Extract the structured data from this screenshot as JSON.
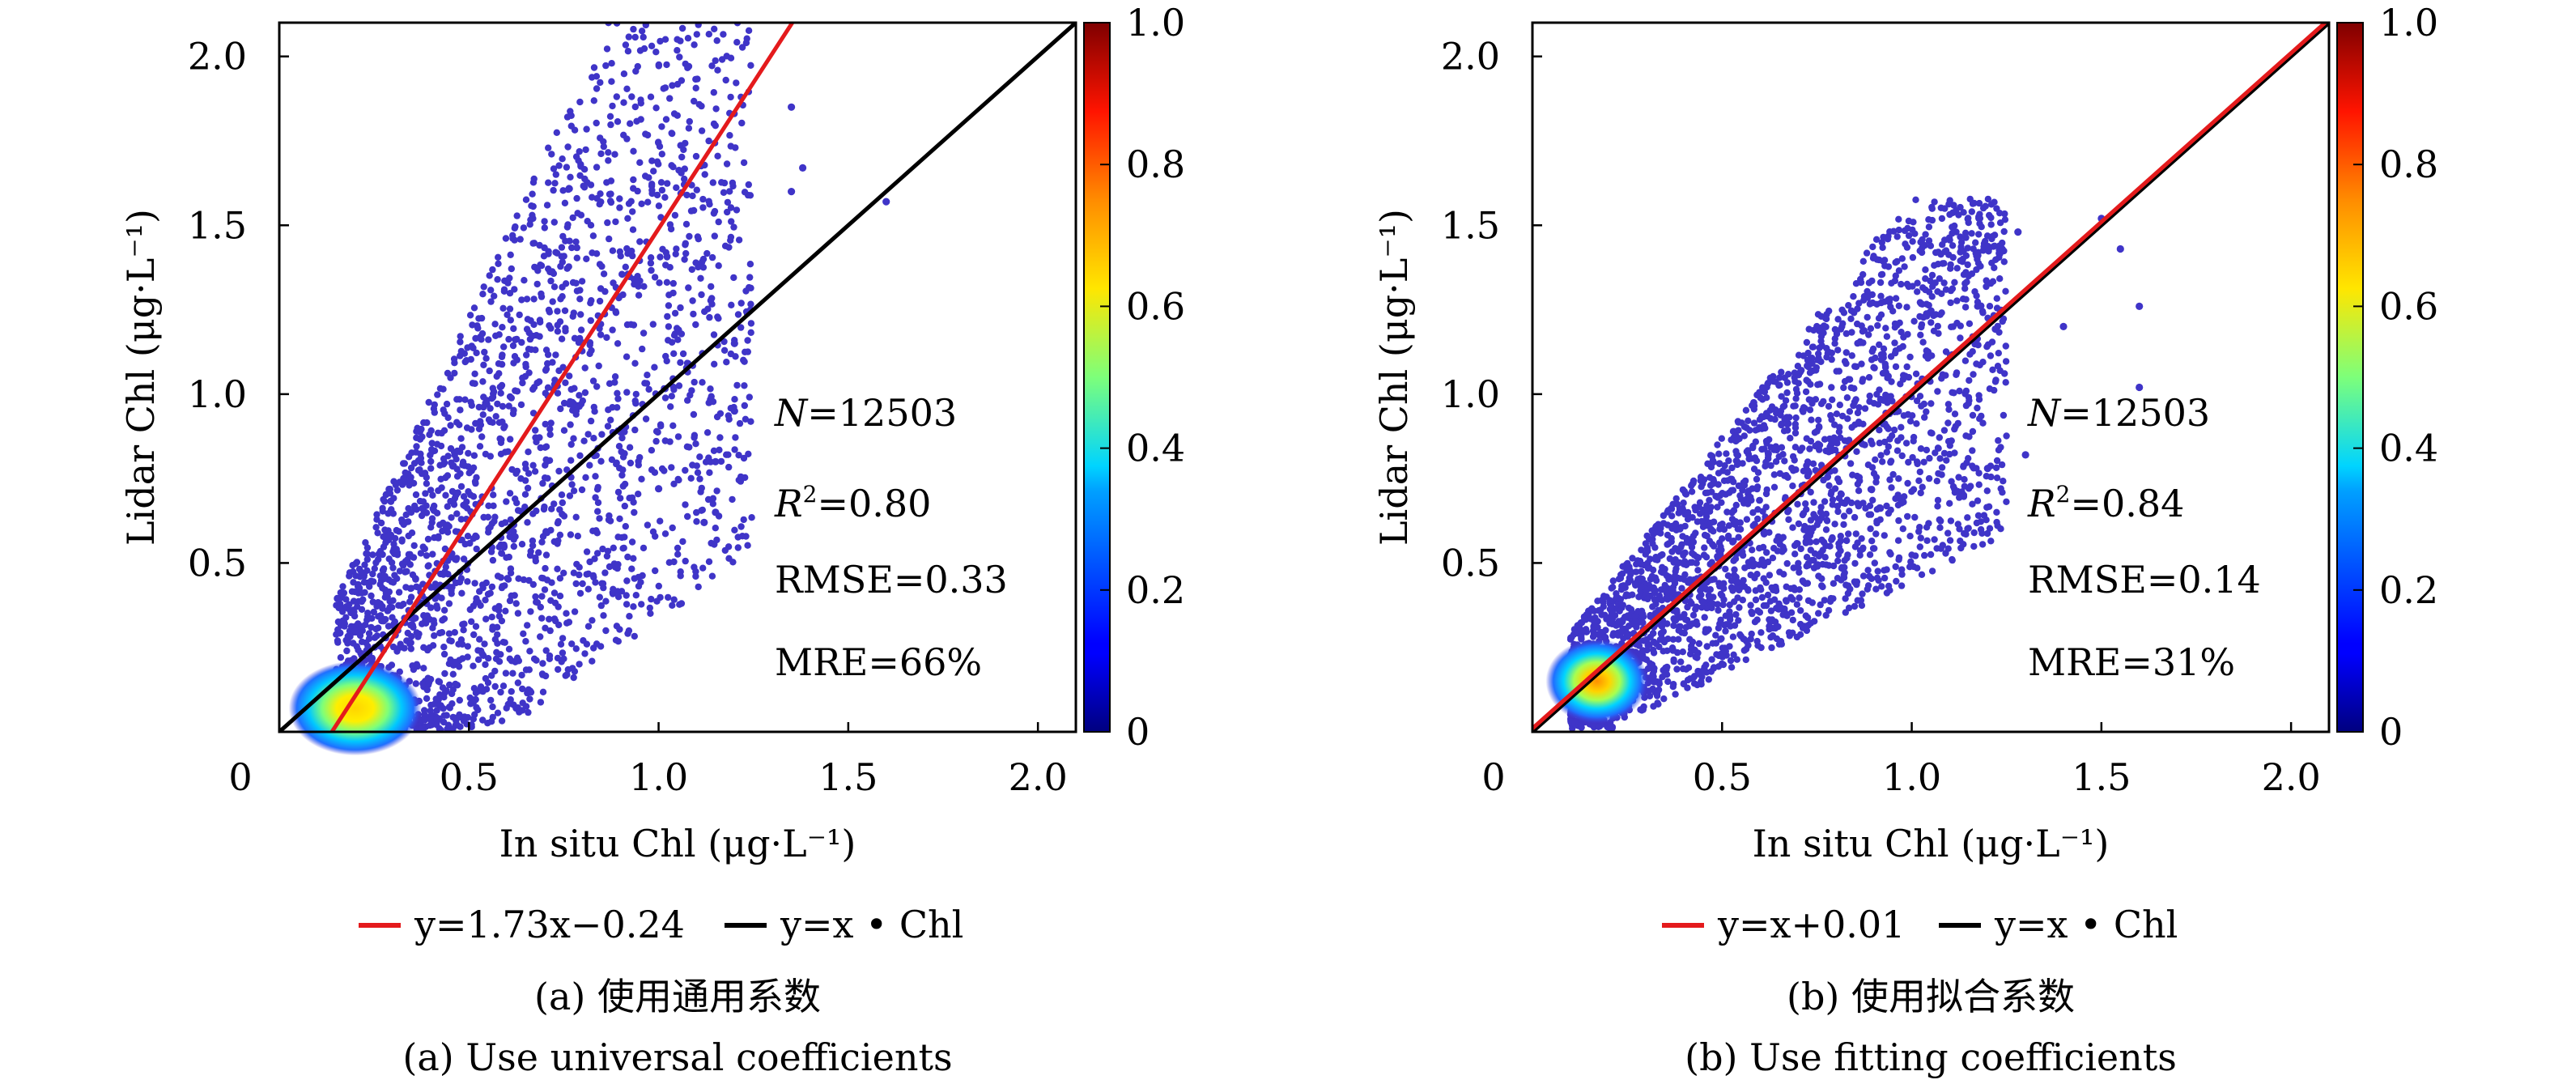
{
  "chart_data": [
    {
      "type": "scatter",
      "panel_label": "(a)",
      "caption_zh": "(a) 使用通用系数",
      "caption_en": "(a) Use universal coefficients",
      "xlabel": "In situ Chl (μg·L⁻¹)",
      "ylabel": "Lidar Chl (μg·L⁻¹)",
      "xlim": [
        0,
        2.1
      ],
      "ylim": [
        0,
        2.1
      ],
      "x_ticks": [
        "0",
        "0.5",
        "1.0",
        "1.5",
        "2.0"
      ],
      "y_ticks": [
        "0.5",
        "1.0",
        "1.5",
        "2.0"
      ],
      "colorbar": {
        "range": [
          0,
          1.0
        ],
        "ticks": [
          "0",
          "0.2",
          "0.4",
          "0.6",
          "0.8",
          "1.0"
        ]
      },
      "stats": {
        "n_label": "N",
        "n_value": "=12503",
        "r2_label": "R",
        "r2_sup": "2",
        "r2_value": "=0.80",
        "rmse": "RMSE=0.33",
        "mre": "MRE=66%"
      },
      "fit": {
        "slope": 1.73,
        "intercept": -0.24,
        "color": "#e41a1c"
      },
      "reference": {
        "slope": 1,
        "intercept": 0,
        "color": "#000000"
      },
      "legend": [
        {
          "text": "y=1.73x−0.24",
          "color": "#e41a1c"
        },
        {
          "text": "y=x • Chl",
          "color": "#000000"
        }
      ],
      "density_cluster": {
        "center": [
          0.2,
          0.07
        ],
        "extent": [
          0.1,
          0.45,
          0.0,
          0.28
        ]
      },
      "scatter_cloud": {
        "x_range": [
          0.15,
          1.25
        ],
        "y_floor": 0.0,
        "y_max": 2.1,
        "n_points": 2600
      },
      "outliers": [
        [
          1.35,
          1.85
        ],
        [
          1.38,
          1.67
        ],
        [
          1.35,
          1.6
        ],
        [
          1.6,
          1.57
        ],
        [
          1.2,
          1.15
        ],
        [
          1.2,
          0.95
        ],
        [
          1.15,
          0.8
        ],
        [
          1.15,
          0.65
        ],
        [
          1.12,
          0.62
        ],
        [
          1.0,
          0.72
        ]
      ]
    },
    {
      "type": "scatter",
      "panel_label": "(b)",
      "caption_zh": "(b) 使用拟合系数",
      "caption_en": "(b) Use fitting coefficients",
      "xlabel": "In situ Chl (μg·L⁻¹)",
      "ylabel": "Lidar Chl (μg·L⁻¹)",
      "xlim": [
        0,
        2.1
      ],
      "ylim": [
        0,
        2.1
      ],
      "x_ticks": [
        "0",
        "0.5",
        "1.0",
        "1.5",
        "2.0"
      ],
      "y_ticks": [
        "0.5",
        "1.0",
        "1.5",
        "2.0"
      ],
      "colorbar": {
        "range": [
          0,
          1.0
        ],
        "ticks": [
          "0",
          "0.2",
          "0.4",
          "0.6",
          "0.8",
          "1.0"
        ]
      },
      "stats": {
        "n_label": "N",
        "n_value": "=12503",
        "r2_label": "R",
        "r2_sup": "2",
        "r2_value": "=0.84",
        "rmse": "RMSE=0.14",
        "mre": "MRE=31%"
      },
      "fit": {
        "slope": 1,
        "intercept": 0.01,
        "color": "#e41a1c"
      },
      "reference": {
        "slope": 1,
        "intercept": 0,
        "color": "#000000"
      },
      "legend": [
        {
          "text": "y=x+0.01",
          "color": "#e41a1c"
        },
        {
          "text": "y=x • Chl",
          "color": "#000000"
        }
      ],
      "density_cluster": {
        "center": [
          0.17,
          0.15
        ],
        "extent": [
          0.08,
          0.35,
          0.05,
          0.3
        ]
      },
      "scatter_cloud": {
        "x_range": [
          0.1,
          1.25
        ],
        "y_floor": 0.0,
        "y_max": 1.58,
        "n_points": 2600
      },
      "outliers": [
        [
          1.5,
          1.52
        ],
        [
          1.55,
          1.43
        ],
        [
          1.6,
          1.26
        ],
        [
          1.6,
          1.02
        ],
        [
          1.4,
          1.2
        ],
        [
          1.3,
          0.82
        ],
        [
          1.2,
          0.78
        ],
        [
          1.28,
          1.48
        ]
      ]
    }
  ]
}
